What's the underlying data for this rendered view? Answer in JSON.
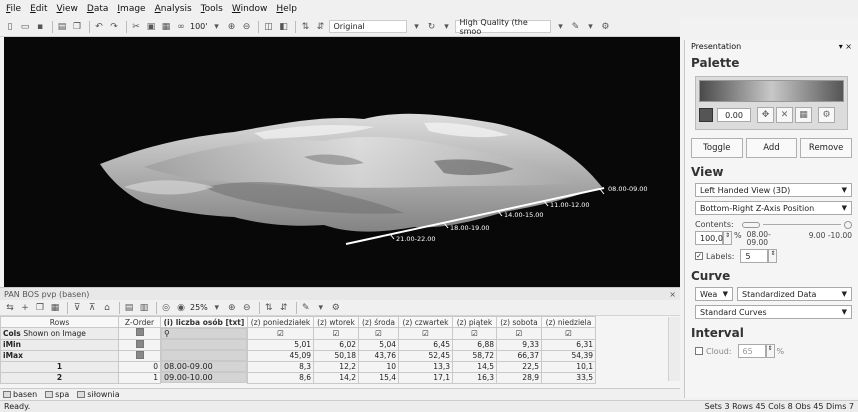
{
  "menu": [
    "File",
    "Edit",
    "View",
    "Data",
    "Image",
    "Analysis",
    "Tools",
    "Window",
    "Help"
  ],
  "toolbar": {
    "zoom": "100'",
    "display_mode": "Original",
    "quality": "High Quality (the smoo"
  },
  "viewport": {
    "axis_labels": [
      "08.00-09.00",
      "11.00-12.00",
      "14.00-15.00",
      "18.00-19.00",
      "21.00-22.00"
    ]
  },
  "subpanel": {
    "title": "PAN BOS pvp (basen)",
    "close": "×",
    "zoom": "25%",
    "headers": [
      "Rows",
      "Z-Order",
      "(i) liczba osób [txt]",
      "(z) poniedziałek",
      "(z) wtorek",
      "(z) środa",
      "(z) czwartek",
      "(z) piątek",
      "(z) sobota",
      "(z) niedziela"
    ],
    "rows": [
      {
        "label": "Cols",
        "name": "Shown on Image",
        "zorder": "",
        "liczba": "",
        "values": [
          "☑",
          "☑",
          "☑",
          "☑",
          "☑",
          "☑",
          "☑"
        ]
      },
      {
        "label": "iMin",
        "name": "",
        "zorder": "",
        "liczba": "",
        "values": [
          "5,01",
          "6,02",
          "5,04",
          "6,45",
          "6,88",
          "9,33",
          "6,31"
        ]
      },
      {
        "label": "iMax",
        "name": "",
        "zorder": "",
        "liczba": "",
        "values": [
          "45,09",
          "50,18",
          "43,76",
          "52,45",
          "58,72",
          "66,37",
          "54,39"
        ]
      },
      {
        "label": "1",
        "name": "",
        "zorder": "0",
        "liczba": "08.00-09.00",
        "values": [
          "8,3",
          "12,2",
          "10",
          "13,3",
          "14,5",
          "22,5",
          "10,1"
        ]
      },
      {
        "label": "2",
        "name": "",
        "zorder": "1",
        "liczba": "09.00-10.00",
        "values": [
          "8,6",
          "14,2",
          "15,4",
          "17,1",
          "16,3",
          "28,9",
          "33,5"
        ]
      }
    ],
    "sheets": [
      "basen",
      "spa",
      "siłownia"
    ]
  },
  "status": {
    "left": "Ready.",
    "right": "Sets 3  Rows 45  Cols 8  Obs 45  Dims 7"
  },
  "presentation": {
    "title": "Presentation",
    "close": "▾ ×",
    "palette_heading": "Palette",
    "palette_value": "0.00",
    "buttons": [
      "Toggle",
      "Add",
      "Remove"
    ],
    "view_heading": "View",
    "view_options": [
      "Left Handed View (3D)",
      "Bottom-Right Z-Axis Position"
    ],
    "contents_label": "Contents:",
    "contents_value": "100,0",
    "contents_unit": "%",
    "contents_from": "08.00-09.00",
    "contents_to": "9.00 -10.00",
    "labels_label": "Labels:",
    "labels_value": "5",
    "curve_heading": "Curve",
    "curve_kind": "Wea",
    "curve_data": "Standardized Data",
    "curve_type": "Standard Curves",
    "interval_heading": "Interval",
    "cloud_label": "Cloud:",
    "cloud_value": "65",
    "cloud_unit": "%"
  }
}
